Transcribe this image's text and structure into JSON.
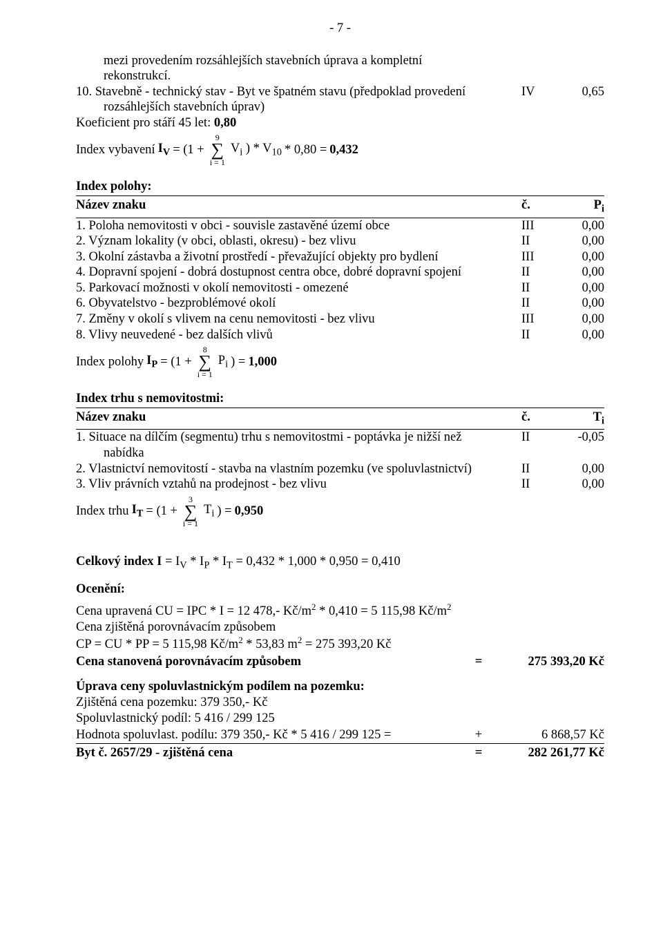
{
  "page_number": "- 7 -",
  "intro": {
    "line1": "mezi provedením rozsáhlejších stavebních úprava a kompletní",
    "line2": "rekonstrukcí."
  },
  "item10": {
    "text": "10. Stavebně - technický stav - Byt ve špatném stavu (předpoklad provedení rozsáhlejších stavebních úprav)",
    "line1_left": "10. Stavebně - technický stav - Byt ve špatném stavu (předpoklad provedení",
    "col_c": "IV",
    "col_v": "0,65",
    "line2": "rozsáhlejších stavebních úprav)"
  },
  "koef": {
    "label": "Koeficient pro stáří 45 let:  ",
    "value": "0,80"
  },
  "iv": {
    "prefix": "Index vybavení ",
    "sym": "I",
    "sub": "V",
    "mid": " = (1 + ",
    "sigma_top": "9",
    "sigma_bot": "i = 1",
    "after": " V",
    "after2": " ) * V",
    "tail": "  * 0,80 = ",
    "result": "0,432"
  },
  "poloha": {
    "heading": "Index polohy:",
    "hdr_name": "Název znaku",
    "hdr_c": "č.",
    "hdr_v": "Pi",
    "rows": [
      {
        "t": "1. Poloha nemovitosti v obci - souvisle zastavěné území obce",
        "c": "III",
        "v": "0,00"
      },
      {
        "t": "2. Význam lokality (v obci, oblasti, okresu) - bez vlivu",
        "c": "II",
        "v": "0,00"
      },
      {
        "t": "3. Okolní zástavba a životní prostředí - převažující objekty pro bydlení",
        "c": "III",
        "v": "0,00"
      },
      {
        "t": "4. Dopravní spojení - dobrá dostupnost centra obce, dobré dopravní spojení",
        "c": "II",
        "v": "0,00"
      },
      {
        "t": "5. Parkovací možnosti v okolí nemovitosti - omezené",
        "c": "II",
        "v": "0,00"
      },
      {
        "t": "6. Obyvatelstvo - bezproblémové okolí",
        "c": "II",
        "v": "0,00"
      },
      {
        "t": "7. Změny v okolí s vlivem na cenu nemovitosti - bez vlivu",
        "c": "III",
        "v": "0,00"
      },
      {
        "t": "8. Vlivy neuvedené - bez dalších vlivů",
        "c": "II",
        "v": "0,00"
      }
    ],
    "ip_prefix": "Index polohy ",
    "ip_mid": " = (1 + ",
    "ip_top": "8",
    "ip_bot": "i = 1",
    "ip_after": " P",
    "ip_tail": " ) = ",
    "ip_result": "1,000"
  },
  "trh": {
    "heading": "Index trhu s nemovitostmi:",
    "hdr_name": "Název znaku",
    "hdr_c": "č.",
    "hdr_v": "Ti",
    "rows": [
      {
        "t1": "1. Situace na dílčím (segmentu) trhu s nemovitostmi - poptávka je nižší než",
        "t2": "nabídka",
        "c": "II",
        "v": "-0,05"
      },
      {
        "t1": "2. Vlastnictví nemovitostí - stavba na vlastním pozemku (ve spoluvlastnictví)",
        "c": "II",
        "v": "0,00"
      },
      {
        "t1": "3. Vliv právních vztahů na prodejnost - bez vlivu",
        "c": "II",
        "v": "0,00"
      }
    ],
    "it_prefix": "Index trhu ",
    "it_mid": " = (1 + ",
    "it_top": "3",
    "it_bot": "i = 1",
    "it_after": " T",
    "it_tail": " ) = ",
    "it_result": "0,950"
  },
  "celkovy": {
    "label": "Celkový index I",
    "rest": " = IV * IP * IT = 0,432 * 1,000 * 0,950 = 0,410"
  },
  "oceneni": {
    "heading": "Ocenění:",
    "l1a": "Cena upravená CU = IPC * I = 12 478,- Kč/m",
    "l1b": " * 0,410  = 5 115,98 Kč/m",
    "l2": "Cena zjištěná porovnávacím způsobem",
    "l3a": "CP = CU * PP = 5 115,98 Kč/m",
    "l3b": " * 53,83 m",
    "l3c": " = 275 393,20 Kč",
    "l4_label": "Cena stanovená porovnávacím způsobem",
    "l4_val": "275 393,20 Kč"
  },
  "uprava": {
    "heading": "Úprava ceny spoluvlastnickým podílem na pozemku:",
    "l1": "Zjištěná cena pozemku: 379 350,- Kč",
    "l2": "Spoluvlastnický podíl: 5 416 / 299 125",
    "l3_label": "Hodnota spoluvlast. podílu:  379 350,- Kč * 5 416 / 299 125  =",
    "l3_sign": "+",
    "l3_val": "6 868,57 Kč",
    "l4_label": "Byt č. 2657/29 - zjištěná cena",
    "l4_sign": "=",
    "l4_val": "282 261,77 Kč"
  }
}
